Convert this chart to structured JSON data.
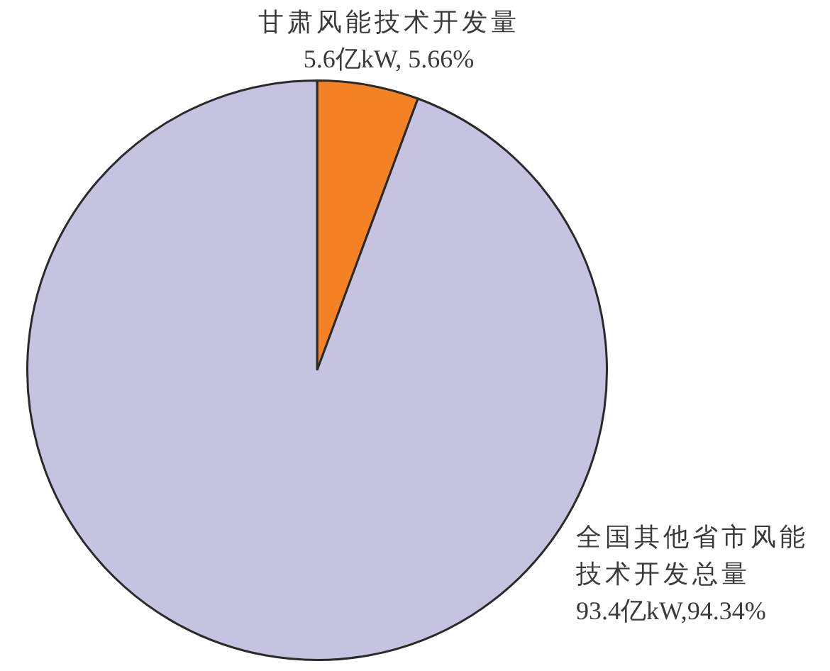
{
  "chart_data": {
    "type": "pie",
    "categories": [
      "甘肃风能技术开发量",
      "全国其他省市风能技术开发总量"
    ],
    "values": [
      5.6,
      93.4
    ],
    "colors": [
      "#f48224",
      "#c6c3e1"
    ],
    "value_labels": [
      "5.6亿kW, 5.66%",
      "93.4亿kW,94.34%"
    ]
  }
}
